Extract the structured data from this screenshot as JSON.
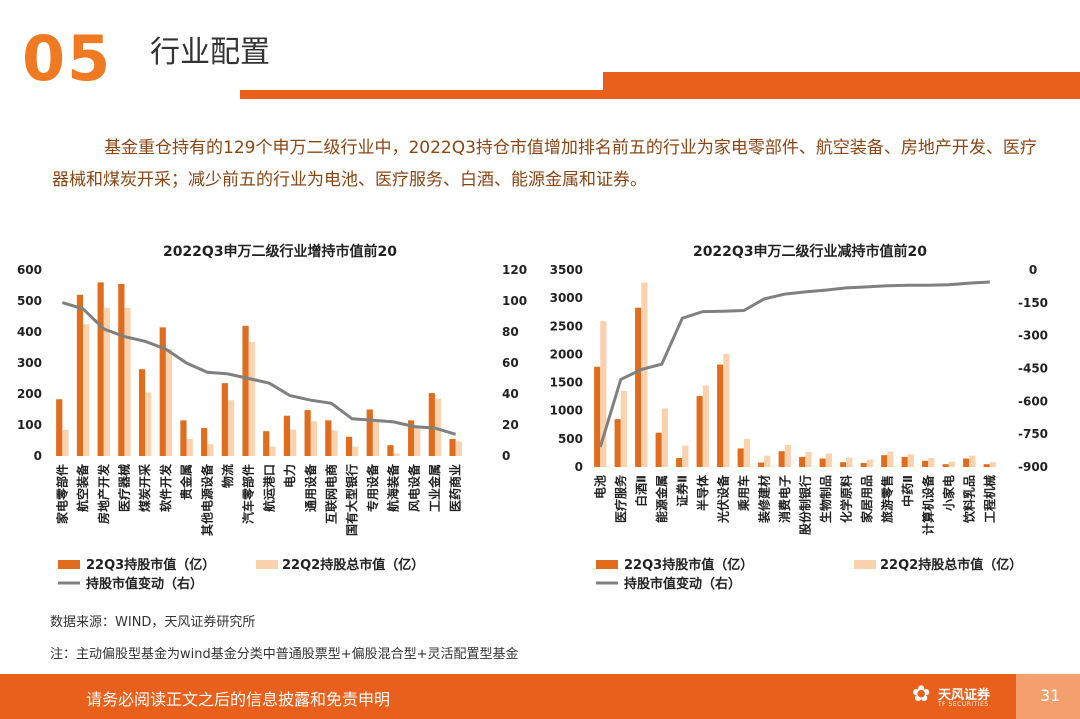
{
  "header": {
    "section_number": "05",
    "section_title": "行业配置"
  },
  "intro_text": "基金重仓持有的129个申万二级行业中，2022Q3持仓市值增加排名前五的行业为家电零部件、航空装备、房地产开发、医疗器械和煤炭开采；减少前五的行业为电池、医疗服务、白酒、能源金属和证券。",
  "colors": {
    "accent": "#e8601c",
    "q3": "#e06c1e",
    "q2": "#fbd2ae",
    "change": "#808080"
  },
  "legend": {
    "q3": "22Q3持股市值（亿）",
    "q2": "22Q2持股总市值（亿）",
    "change": "持股市值变动（右）"
  },
  "chart_data": [
    {
      "type": "bar",
      "title": "2022Q3申万二级行业增持市值前20",
      "categories": [
        "家电零部件",
        "航空装备",
        "房地产开发",
        "医疗器械",
        "煤炭开采",
        "软件开发",
        "贵金属",
        "其他电源设备",
        "物流",
        "汽车零部件",
        "航运港口",
        "电力",
        "通用设备",
        "互联网电商",
        "国有大型银行",
        "专用设备",
        "航海装备",
        "风电设备",
        "工业金属",
        "医药商业"
      ],
      "series": [
        {
          "name": "22Q3持股市值（亿）",
          "type": "bar",
          "axis": "left",
          "values": [
            183,
            520,
            560,
            555,
            280,
            415,
            115,
            90,
            235,
            420,
            80,
            130,
            148,
            115,
            62,
            150,
            35,
            115,
            203,
            55
          ]
        },
        {
          "name": "22Q2持股总市值（亿）",
          "type": "bar",
          "axis": "left",
          "values": [
            84,
            425,
            478,
            478,
            205,
            345,
            55,
            38,
            180,
            368,
            30,
            85,
            112,
            82,
            30,
            117,
            8,
            90,
            185,
            47
          ]
        },
        {
          "name": "持股市值变动（右）",
          "type": "line",
          "axis": "right",
          "values": [
            99,
            95,
            82,
            77,
            74,
            69,
            60,
            54,
            53,
            50,
            47,
            39,
            36,
            34,
            24,
            23,
            22,
            19,
            18,
            14
          ]
        }
      ],
      "ylim_left": [
        0,
        600
      ],
      "yticks_left": [
        0,
        100,
        200,
        300,
        400,
        500,
        600
      ],
      "ylim_right": [
        0,
        120
      ],
      "yticks_right": [
        0,
        20,
        40,
        60,
        80,
        100,
        120
      ]
    },
    {
      "type": "bar",
      "title": "2022Q3申万二级行业减持市值前20",
      "categories": [
        "电池",
        "医疗服务",
        "白酒Ⅱ",
        "能源金属",
        "证券Ⅱ",
        "半导体",
        "光伏设备",
        "乘用车",
        "装修建材",
        "消费电子",
        "股份制银行",
        "生物制品",
        "化学原料",
        "家居用品",
        "旅游零售",
        "中药Ⅱ",
        "计算机设备",
        "小家电",
        "饮料乳品",
        "工程机械"
      ],
      "series": [
        {
          "name": "22Q3持股市值（亿）",
          "type": "bar",
          "axis": "left",
          "values": [
            1780,
            850,
            2830,
            610,
            160,
            1260,
            1820,
            330,
            80,
            280,
            180,
            150,
            85,
            70,
            210,
            180,
            110,
            50,
            150,
            50
          ]
        },
        {
          "name": "22Q2持股总市值（亿）",
          "type": "bar",
          "axis": "left",
          "values": [
            2590,
            1350,
            3280,
            1040,
            380,
            1450,
            2010,
            500,
            200,
            390,
            270,
            240,
            165,
            130,
            270,
            225,
            160,
            95,
            200,
            85
          ]
        },
        {
          "name": "持股市值变动（右）",
          "type": "line",
          "axis": "right",
          "values": [
            -808,
            -500,
            -455,
            -430,
            -220,
            -190,
            -188,
            -185,
            -132,
            -110,
            -100,
            -92,
            -82,
            -77,
            -72,
            -70,
            -70,
            -67,
            -60,
            -55
          ]
        }
      ],
      "ylim_left": [
        0,
        3500
      ],
      "yticks_left": [
        0,
        500,
        1000,
        1500,
        2000,
        2500,
        3000,
        3500
      ],
      "ylim_right": [
        -900,
        0
      ],
      "yticks_right": [
        0,
        -150,
        -300,
        -450,
        -600,
        -750,
        -900
      ]
    }
  ],
  "source_text": "数据来源：WIND，天风证券研究所",
  "note_text": "注：主动偏股型基金为wind基金分类中普通股票型+偏股混合型+灵活配置型基金",
  "footer": {
    "disclaimer": "请务必阅读正文之后的信息披露和免责申明",
    "brand_cn": "天风证券",
    "brand_en": "TF SECURITIES",
    "page_number": "31"
  }
}
